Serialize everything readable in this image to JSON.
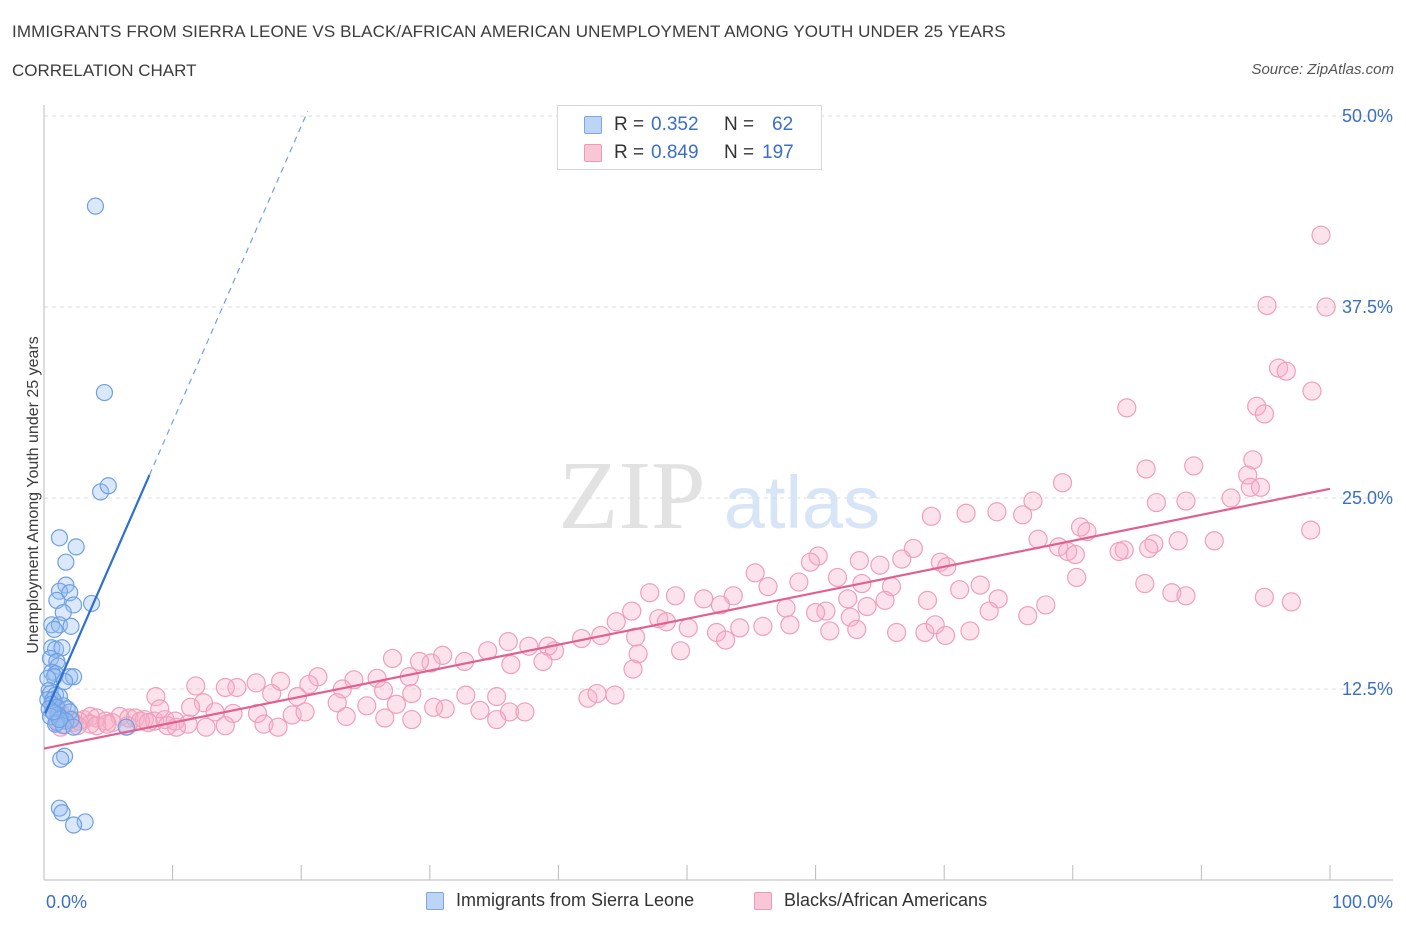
{
  "title": "IMMIGRANTS FROM SIERRA LEONE VS BLACK/AFRICAN AMERICAN UNEMPLOYMENT AMONG YOUTH UNDER 25 YEARS",
  "subtitle": "CORRELATION CHART",
  "source": "Source: ZipAtlas.com",
  "watermark": {
    "zip": "ZIP",
    "atlas": "atlas"
  },
  "legend_top": [
    {
      "r_label": "R =",
      "r_value": "0.352",
      "n_label": "N =",
      "n_value": "62",
      "color": "#8ab4ee"
    },
    {
      "r_label": "R =",
      "r_value": "0.849",
      "n_label": "N =",
      "n_value": "197",
      "color": "#f4a9c0"
    }
  ],
  "legend_bottom": [
    {
      "label": "Immigrants from Sierra Leone",
      "color": "#8ab4ee"
    },
    {
      "label": "Blacks/African Americans",
      "color": "#f4a9c0"
    }
  ],
  "chart_data": {
    "type": "scatter",
    "title": "IMMIGRANTS FROM SIERRA LEONE VS BLACK/AFRICAN AMERICAN UNEMPLOYMENT AMONG YOUTH UNDER 25 YEARS",
    "xlabel": "",
    "ylabel": "Unemployment Among Youth under 25 years",
    "xlim": [
      0,
      100
    ],
    "ylim": [
      0,
      50
    ],
    "x_tick_labels": [
      "0.0%",
      "100.0%"
    ],
    "y_ticks": [
      12.5,
      25.0,
      37.5,
      50.0
    ],
    "y_tick_labels": [
      "12.5%",
      "25.0%",
      "37.5%",
      "50.0%"
    ],
    "grid": true,
    "series": [
      {
        "name": "Immigrants from Sierra Leone",
        "color": "#6fa3e8",
        "line_color": "#2f6fd0",
        "trend": {
          "x0": 0.1,
          "y0": 10.9,
          "x1": 8.2,
          "y1": 26.5,
          "dash_to_x": 20.5,
          "dash_to_y": 50.3
        },
        "points": [
          [
            4.0,
            44.1
          ],
          [
            4.7,
            31.9
          ],
          [
            4.4,
            25.4
          ],
          [
            5.0,
            25.8
          ],
          [
            1.2,
            22.4
          ],
          [
            2.5,
            21.8
          ],
          [
            1.7,
            20.8
          ],
          [
            1.7,
            19.3
          ],
          [
            1.2,
            18.9
          ],
          [
            2.0,
            18.8
          ],
          [
            1.0,
            18.3
          ],
          [
            3.7,
            18.1
          ],
          [
            2.3,
            18.0
          ],
          [
            1.5,
            17.5
          ],
          [
            0.6,
            16.7
          ],
          [
            1.2,
            16.7
          ],
          [
            2.1,
            16.6
          ],
          [
            0.8,
            16.4
          ],
          [
            0.6,
            15.2
          ],
          [
            0.9,
            15.1
          ],
          [
            1.4,
            15.2
          ],
          [
            0.5,
            14.5
          ],
          [
            1.0,
            14.3
          ],
          [
            1.1,
            14.0
          ],
          [
            0.6,
            13.6
          ],
          [
            0.9,
            13.5
          ],
          [
            2.0,
            13.3
          ],
          [
            2.3,
            13.3
          ],
          [
            0.8,
            13.3
          ],
          [
            0.3,
            13.2
          ],
          [
            1.6,
            13.0
          ],
          [
            0.4,
            12.4
          ],
          [
            0.5,
            12.2
          ],
          [
            0.9,
            12.1
          ],
          [
            1.2,
            12.0
          ],
          [
            0.3,
            11.8
          ],
          [
            0.7,
            11.8
          ],
          [
            0.6,
            11.5
          ],
          [
            1.5,
            11.4
          ],
          [
            1.0,
            11.3
          ],
          [
            0.4,
            11.2
          ],
          [
            1.8,
            11.2
          ],
          [
            2.0,
            11.0
          ],
          [
            0.8,
            10.9
          ],
          [
            1.1,
            10.8
          ],
          [
            0.5,
            10.7
          ],
          [
            1.3,
            10.6
          ],
          [
            2.1,
            10.5
          ],
          [
            1.7,
            10.4
          ],
          [
            1.0,
            10.3
          ],
          [
            0.9,
            10.2
          ],
          [
            1.5,
            10.1
          ],
          [
            2.3,
            10.0
          ],
          [
            1.2,
            10.5
          ],
          [
            0.7,
            11.0
          ],
          [
            6.4,
            10.0
          ],
          [
            1.6,
            8.1
          ],
          [
            1.3,
            7.9
          ],
          [
            1.2,
            4.7
          ],
          [
            1.4,
            4.4
          ],
          [
            3.2,
            3.8
          ],
          [
            2.3,
            3.6
          ]
        ]
      },
      {
        "name": "Blacks/African Americans",
        "color": "#f08fb0",
        "line_color": "#e0608f",
        "trend": {
          "x0": 0.0,
          "y0": 8.6,
          "x1": 100.0,
          "y1": 25.6
        },
        "points": [
          [
            99.3,
            42.2
          ],
          [
            95.1,
            37.6
          ],
          [
            99.7,
            37.5
          ],
          [
            96.0,
            33.5
          ],
          [
            96.6,
            33.3
          ],
          [
            98.6,
            32.0
          ],
          [
            84.2,
            30.9
          ],
          [
            94.3,
            31.0
          ],
          [
            94.9,
            30.5
          ],
          [
            94.0,
            27.5
          ],
          [
            89.4,
            27.1
          ],
          [
            85.7,
            26.9
          ],
          [
            93.6,
            26.5
          ],
          [
            92.3,
            25.0
          ],
          [
            93.8,
            25.7
          ],
          [
            94.6,
            25.7
          ],
          [
            79.2,
            26.0
          ],
          [
            86.5,
            24.7
          ],
          [
            88.8,
            24.8
          ],
          [
            76.9,
            24.8
          ],
          [
            74.1,
            24.1
          ],
          [
            71.7,
            24.0
          ],
          [
            76.1,
            23.9
          ],
          [
            69.0,
            23.8
          ],
          [
            80.6,
            23.1
          ],
          [
            81.1,
            22.8
          ],
          [
            98.5,
            22.9
          ],
          [
            77.3,
            22.3
          ],
          [
            91.0,
            22.2
          ],
          [
            88.2,
            22.2
          ],
          [
            86.3,
            22.0
          ],
          [
            85.9,
            21.7
          ],
          [
            84.0,
            21.6
          ],
          [
            78.9,
            21.8
          ],
          [
            79.6,
            21.5
          ],
          [
            80.2,
            21.3
          ],
          [
            83.6,
            21.5
          ],
          [
            67.6,
            21.7
          ],
          [
            66.7,
            21.0
          ],
          [
            63.4,
            20.9
          ],
          [
            65.0,
            20.6
          ],
          [
            69.7,
            20.8
          ],
          [
            60.2,
            21.2
          ],
          [
            59.6,
            20.8
          ],
          [
            70.2,
            20.5
          ],
          [
            55.3,
            20.1
          ],
          [
            61.7,
            19.8
          ],
          [
            63.6,
            19.4
          ],
          [
            65.9,
            19.2
          ],
          [
            72.8,
            19.3
          ],
          [
            58.7,
            19.5
          ],
          [
            71.2,
            19.0
          ],
          [
            74.2,
            18.4
          ],
          [
            77.9,
            18.0
          ],
          [
            80.3,
            19.8
          ],
          [
            85.6,
            19.4
          ],
          [
            87.7,
            18.8
          ],
          [
            88.8,
            18.6
          ],
          [
            94.9,
            18.5
          ],
          [
            97.0,
            18.2
          ],
          [
            56.3,
            19.2
          ],
          [
            53.6,
            18.6
          ],
          [
            62.5,
            18.4
          ],
          [
            68.7,
            18.3
          ],
          [
            73.5,
            17.6
          ],
          [
            76.5,
            17.3
          ],
          [
            60.8,
            17.6
          ],
          [
            64.0,
            17.9
          ],
          [
            65.4,
            18.3
          ],
          [
            49.1,
            18.6
          ],
          [
            47.1,
            18.8
          ],
          [
            51.3,
            18.4
          ],
          [
            52.6,
            18.0
          ],
          [
            57.7,
            17.8
          ],
          [
            60.0,
            17.5
          ],
          [
            62.7,
            17.2
          ],
          [
            45.7,
            17.6
          ],
          [
            47.8,
            17.1
          ],
          [
            44.5,
            16.9
          ],
          [
            48.4,
            16.9
          ],
          [
            50.1,
            16.5
          ],
          [
            52.3,
            16.2
          ],
          [
            54.1,
            16.5
          ],
          [
            55.9,
            16.6
          ],
          [
            58.0,
            16.7
          ],
          [
            61.1,
            16.3
          ],
          [
            63.2,
            16.4
          ],
          [
            66.3,
            16.2
          ],
          [
            68.5,
            16.2
          ],
          [
            69.3,
            16.7
          ],
          [
            70.1,
            16.0
          ],
          [
            72.0,
            16.3
          ],
          [
            43.3,
            16.0
          ],
          [
            46.0,
            15.9
          ],
          [
            41.8,
            15.8
          ],
          [
            39.2,
            15.3
          ],
          [
            37.7,
            15.3
          ],
          [
            39.7,
            15.0
          ],
          [
            46.2,
            14.8
          ],
          [
            49.5,
            15.0
          ],
          [
            53.0,
            15.7
          ],
          [
            36.1,
            15.6
          ],
          [
            34.5,
            15.0
          ],
          [
            32.7,
            14.3
          ],
          [
            31.0,
            14.7
          ],
          [
            30.1,
            14.2
          ],
          [
            29.2,
            14.3
          ],
          [
            27.1,
            14.5
          ],
          [
            36.3,
            14.1
          ],
          [
            38.8,
            14.3
          ],
          [
            45.8,
            13.8
          ],
          [
            28.4,
            13.3
          ],
          [
            25.9,
            13.2
          ],
          [
            24.1,
            13.1
          ],
          [
            21.3,
            13.3
          ],
          [
            18.4,
            13.0
          ],
          [
            16.5,
            12.9
          ],
          [
            15.0,
            12.6
          ],
          [
            14.1,
            12.6
          ],
          [
            20.6,
            12.8
          ],
          [
            23.2,
            12.5
          ],
          [
            26.4,
            12.4
          ],
          [
            28.6,
            12.2
          ],
          [
            32.8,
            12.1
          ],
          [
            35.2,
            12.0
          ],
          [
            42.3,
            11.9
          ],
          [
            43.0,
            12.2
          ],
          [
            44.4,
            12.1
          ],
          [
            17.7,
            12.2
          ],
          [
            19.7,
            12.0
          ],
          [
            22.8,
            11.6
          ],
          [
            25.1,
            11.4
          ],
          [
            27.4,
            11.5
          ],
          [
            30.3,
            11.3
          ],
          [
            31.2,
            11.2
          ],
          [
            33.9,
            11.1
          ],
          [
            36.2,
            11.0
          ],
          [
            37.4,
            11.0
          ],
          [
            12.4,
            11.6
          ],
          [
            11.4,
            11.3
          ],
          [
            13.3,
            11.0
          ],
          [
            14.7,
            10.9
          ],
          [
            16.6,
            10.9
          ],
          [
            19.3,
            10.8
          ],
          [
            20.3,
            11.0
          ],
          [
            23.5,
            10.7
          ],
          [
            26.5,
            10.6
          ],
          [
            28.6,
            10.5
          ],
          [
            35.2,
            10.5
          ],
          [
            5.9,
            10.7
          ],
          [
            6.6,
            10.6
          ],
          [
            7.1,
            10.6
          ],
          [
            7.8,
            10.5
          ],
          [
            8.6,
            10.4
          ],
          [
            9.4,
            10.5
          ],
          [
            10.2,
            10.4
          ],
          [
            11.2,
            10.2
          ],
          [
            12.6,
            10.0
          ],
          [
            14.1,
            10.1
          ],
          [
            17.1,
            10.2
          ],
          [
            18.2,
            10.0
          ],
          [
            3.1,
            10.5
          ],
          [
            3.6,
            10.7
          ],
          [
            4.1,
            10.6
          ],
          [
            4.8,
            10.4
          ],
          [
            5.3,
            10.3
          ],
          [
            2.3,
            10.3
          ],
          [
            2.7,
            10.4
          ],
          [
            3.6,
            10.2
          ],
          [
            4.1,
            10.1
          ],
          [
            1.1,
            10.4
          ],
          [
            1.6,
            10.2
          ],
          [
            2.1,
            10.5
          ],
          [
            1.3,
            10.0
          ],
          [
            0.8,
            11.5
          ],
          [
            1.3,
            10.9
          ],
          [
            2.6,
            10.1
          ],
          [
            8.7,
            12.0
          ],
          [
            11.8,
            12.7
          ],
          [
            9.0,
            11.2
          ],
          [
            10.3,
            10.0
          ],
          [
            4.9,
            10.2
          ],
          [
            6.5,
            10.1
          ],
          [
            7.5,
            10.4
          ],
          [
            8.1,
            10.3
          ],
          [
            9.6,
            10.1
          ],
          [
            1.0,
            11.2
          ]
        ]
      }
    ]
  }
}
